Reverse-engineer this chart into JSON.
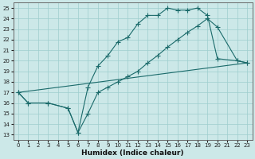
{
  "xlabel": "Humidex (Indice chaleur)",
  "bg_color": "#cce8e8",
  "line_color": "#1a6a6a",
  "grid_color": "#9ecece",
  "xlim": [
    -0.5,
    23.5
  ],
  "ylim": [
    12.5,
    25.5
  ],
  "xticks": [
    0,
    1,
    2,
    3,
    4,
    5,
    6,
    7,
    8,
    9,
    10,
    11,
    12,
    13,
    14,
    15,
    16,
    17,
    18,
    19,
    20,
    21,
    22,
    23
  ],
  "yticks": [
    13,
    14,
    15,
    16,
    17,
    18,
    19,
    20,
    21,
    22,
    23,
    24,
    25
  ],
  "series1_x": [
    0,
    1,
    3,
    5,
    6,
    7,
    8,
    9,
    10,
    11,
    12,
    13,
    14,
    15,
    16,
    17,
    18,
    19,
    20,
    22,
    23
  ],
  "series1_y": [
    17.0,
    16.0,
    16.0,
    15.5,
    13.2,
    17.5,
    19.5,
    20.5,
    21.8,
    22.2,
    23.5,
    24.3,
    24.3,
    25.0,
    24.8,
    24.8,
    25.0,
    24.3,
    20.2,
    20.0,
    19.8
  ],
  "series2_x": [
    0,
    1,
    3,
    5,
    6,
    7,
    8,
    9,
    10,
    11,
    12,
    13,
    14,
    15,
    16,
    17,
    18,
    19,
    20,
    22,
    23
  ],
  "series2_y": [
    17.0,
    16.0,
    16.0,
    15.5,
    13.2,
    15.0,
    17.0,
    17.5,
    18.0,
    18.5,
    19.0,
    19.8,
    20.5,
    21.3,
    22.0,
    22.7,
    23.3,
    24.0,
    23.2,
    20.0,
    19.8
  ],
  "series3_x": [
    0,
    23
  ],
  "series3_y": [
    17.0,
    19.8
  ]
}
